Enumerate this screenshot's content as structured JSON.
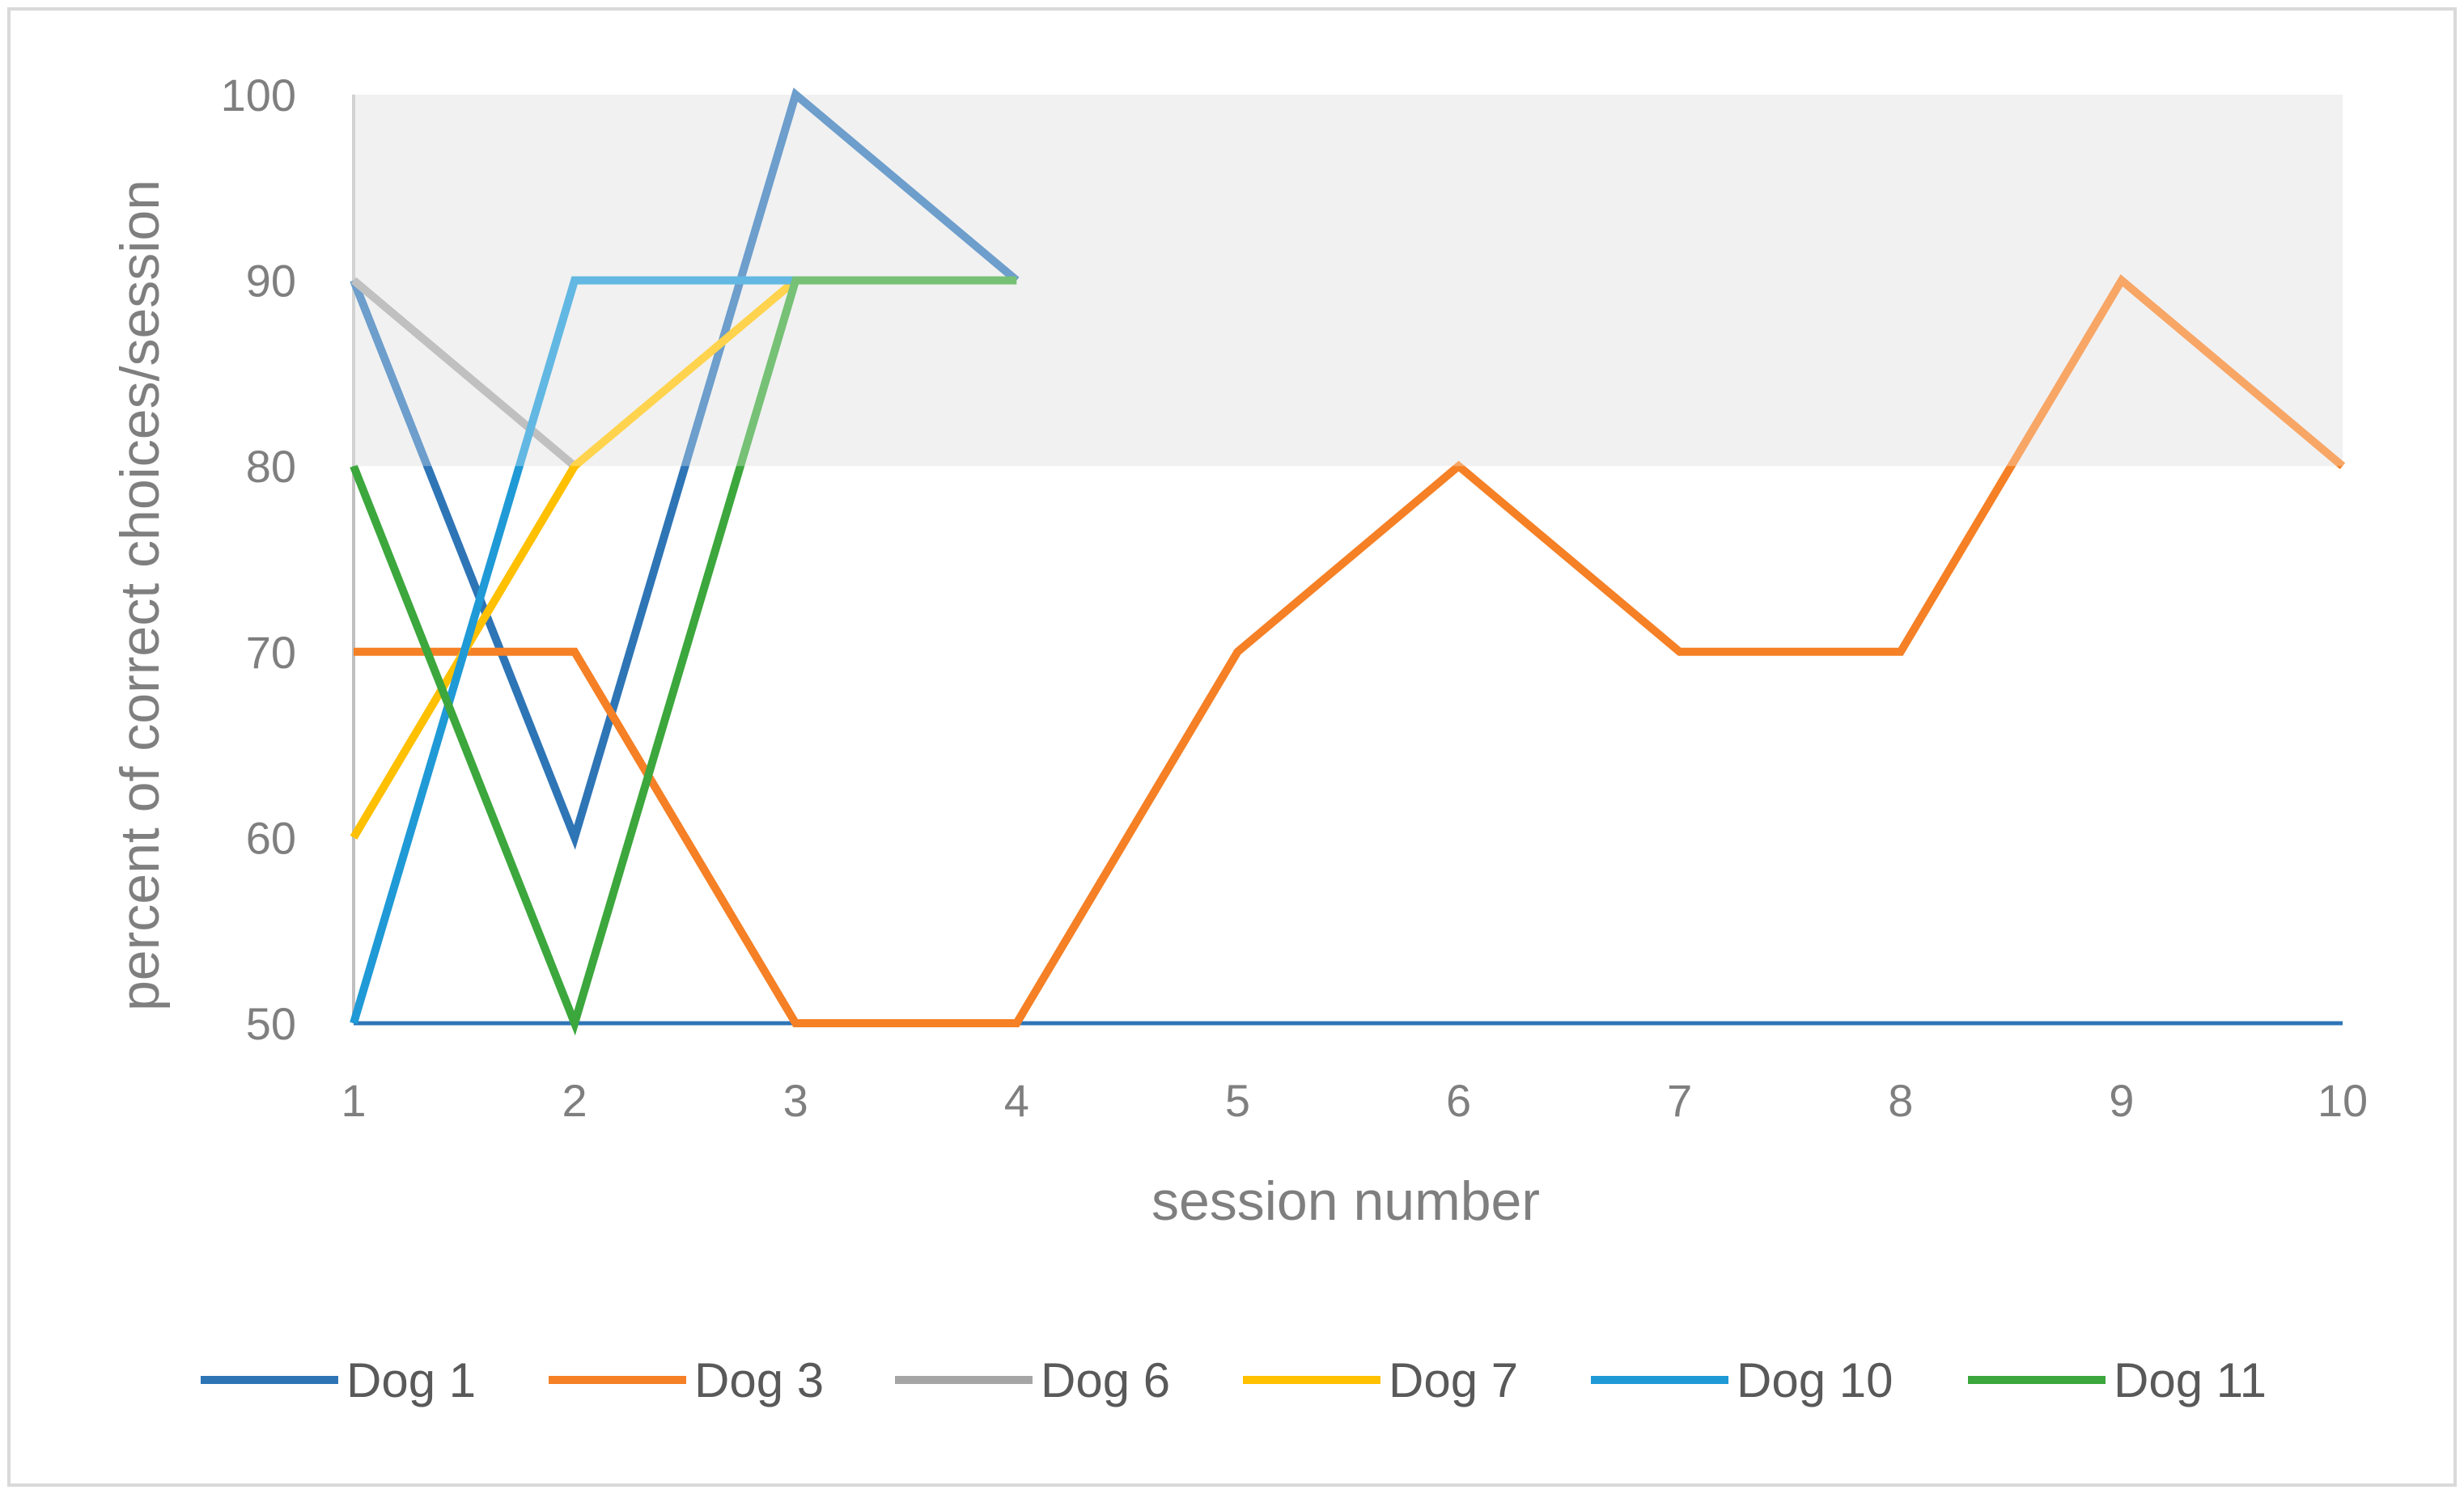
{
  "chart_data": {
    "type": "line",
    "title": "",
    "xlabel": "session number",
    "ylabel": "percent of correct choices/session",
    "x": [
      1,
      2,
      3,
      4,
      5,
      6,
      7,
      8,
      9,
      10
    ],
    "xlim": [
      1,
      10
    ],
    "ylim": [
      50,
      100
    ],
    "yticks": [
      50,
      60,
      70,
      80,
      90,
      100
    ],
    "grid": false,
    "legend_position": "bottom",
    "highlight_band": {
      "from": 80,
      "to": 100,
      "color": "#ebebeb"
    },
    "baseline": {
      "value": 50,
      "color": "#2e75b6"
    },
    "series": [
      {
        "name": "Dog 1",
        "color": "#2e75b6",
        "x": [
          1,
          2,
          3,
          4
        ],
        "values": [
          90,
          60,
          100,
          90
        ]
      },
      {
        "name": "Dog 3",
        "color": "#f58025",
        "x": [
          1,
          2,
          3,
          4,
          5,
          6,
          7,
          8,
          9,
          10
        ],
        "values": [
          70,
          70,
          50,
          50,
          70,
          80,
          70,
          70,
          90,
          80
        ]
      },
      {
        "name": "Dog 6",
        "color": "#a5a5a5",
        "x": [
          1,
          2
        ],
        "values": [
          90,
          80
        ]
      },
      {
        "name": "Dog 7",
        "color": "#ffc000",
        "x": [
          1,
          2,
          3
        ],
        "values": [
          60,
          80,
          90
        ]
      },
      {
        "name": "Dog 10",
        "color": "#1f9ad6",
        "x": [
          1,
          2,
          3
        ],
        "values": [
          50,
          90,
          90
        ]
      },
      {
        "name": "Dog 11",
        "color": "#3ca73c",
        "x": [
          1,
          2,
          3,
          4
        ],
        "values": [
          80,
          50,
          90,
          90
        ]
      }
    ]
  },
  "frame": {
    "border_color": "#d9d9d9"
  }
}
